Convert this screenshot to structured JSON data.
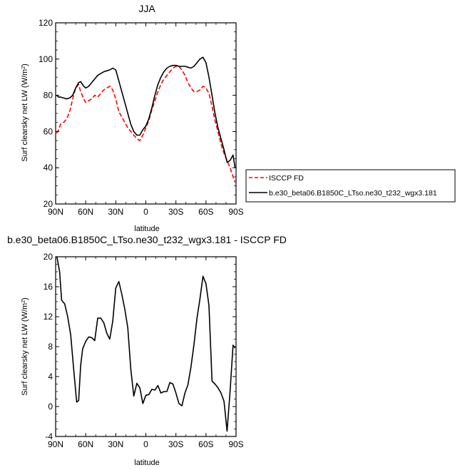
{
  "chart_data": [
    {
      "type": "line",
      "title": "JJA",
      "xlabel": "latitude",
      "ylabel": "Surf clearsky net LW (W/m²)",
      "xlim": [
        90,
        -90
      ],
      "ylim": [
        20,
        120
      ],
      "x_tick_values": [
        90,
        60,
        30,
        0,
        -30,
        -60,
        -90
      ],
      "x_tick_labels": [
        "90N",
        "60N",
        "30N",
        "0",
        "30S",
        "60S",
        "90S"
      ],
      "y_ticks": [
        20,
        40,
        60,
        80,
        100,
        120
      ],
      "legend_position": "outside-right",
      "series": [
        {
          "name": "ISCCP FD",
          "color": "#ff0000",
          "dash": "dashed",
          "x": [
            89,
            87,
            85,
            82,
            79,
            76,
            73,
            70,
            67,
            65,
            62,
            60,
            57,
            54,
            51,
            48,
            45,
            42,
            39,
            36,
            33,
            30,
            27,
            24,
            21,
            18,
            15,
            12,
            9,
            6,
            3,
            0,
            -3,
            -6,
            -9,
            -12,
            -15,
            -18,
            -21,
            -24,
            -27,
            -30,
            -33,
            -36,
            -39,
            -42,
            -45,
            -48,
            -51,
            -54,
            -57,
            -60,
            -63,
            -66,
            -69,
            -72,
            -75,
            -78,
            -81,
            -84,
            -87,
            -89
          ],
          "values": [
            59,
            61,
            64,
            65,
            67,
            71,
            78,
            84,
            86,
            82,
            78,
            76,
            77,
            78,
            80,
            79,
            81,
            83,
            84,
            85,
            83,
            78,
            71,
            68,
            65,
            62,
            60,
            58,
            56,
            55,
            58,
            62,
            66,
            72,
            77,
            82,
            86,
            89,
            91,
            93,
            95,
            96,
            96,
            94,
            91,
            87,
            84,
            82,
            82,
            83,
            85,
            84,
            81,
            74,
            66,
            60,
            53,
            48,
            44,
            40,
            35,
            32
          ]
        },
        {
          "name": "b.e30_beta06.B1850C_LTso.ne30_t232_wgx3.181",
          "color": "#000000",
          "dash": "solid",
          "x": [
            89,
            87,
            85,
            82,
            79,
            76,
            73,
            70,
            67,
            65,
            62,
            60,
            57,
            54,
            51,
            48,
            45,
            42,
            39,
            36,
            33,
            30,
            27,
            24,
            21,
            18,
            15,
            12,
            9,
            6,
            3,
            0,
            -3,
            -6,
            -9,
            -12,
            -15,
            -18,
            -21,
            -24,
            -27,
            -30,
            -33,
            -36,
            -39,
            -42,
            -45,
            -48,
            -51,
            -54,
            -57,
            -60,
            -63,
            -66,
            -69,
            -72,
            -75,
            -78,
            -81,
            -84,
            -87,
            -89
          ],
          "values": [
            80,
            79,
            79,
            78.5,
            78,
            78.5,
            80,
            84,
            87,
            87.5,
            85,
            84,
            85,
            87,
            89,
            91,
            92,
            93,
            93.5,
            94,
            95,
            94,
            88,
            82,
            76,
            70,
            64,
            60,
            58,
            58,
            61,
            63,
            67,
            73,
            80,
            86,
            90,
            93,
            95,
            96,
            96.5,
            96.5,
            96,
            96,
            96,
            95.5,
            95,
            96,
            98,
            100,
            101,
            98,
            90,
            80,
            70,
            62,
            56,
            50,
            43,
            44,
            47,
            40
          ]
        }
      ]
    },
    {
      "type": "line",
      "title": "b.e30_beta06.B1850C_LTso.ne30_t232_wgx3.181 - ISCCP FD",
      "xlabel": "latitude",
      "ylabel": "Surf clearsky net LW (W/m²)",
      "xlim": [
        90,
        -90
      ],
      "ylim": [
        -4,
        20
      ],
      "x_tick_values": [
        90,
        60,
        30,
        0,
        -30,
        -60,
        -90
      ],
      "x_tick_labels": [
        "90N",
        "60N",
        "30N",
        "0",
        "30S",
        "60S",
        "90S"
      ],
      "y_ticks": [
        -4,
        0,
        4,
        8,
        12,
        16,
        20
      ],
      "series": [
        {
          "color": "#000000",
          "dash": "solid",
          "x": [
            89,
            86,
            84,
            81,
            78,
            75,
            72,
            69,
            67,
            65,
            63,
            60,
            57,
            54,
            51,
            48,
            45,
            42,
            39,
            36,
            33,
            30,
            27,
            24,
            21,
            18,
            15,
            12,
            9,
            6,
            3,
            0,
            -3,
            -6,
            -9,
            -12,
            -15,
            -18,
            -21,
            -24,
            -27,
            -30,
            -33,
            -36,
            -39,
            -42,
            -45,
            -48,
            -51,
            -54,
            -57,
            -60,
            -63,
            -66,
            -69,
            -72,
            -75,
            -78,
            -81,
            -84,
            -87,
            -89
          ],
          "values": [
            20.2,
            18,
            14.2,
            13.7,
            12,
            9.6,
            5,
            0.6,
            0.8,
            5.5,
            7.7,
            8.7,
            9.3,
            9.2,
            8.8,
            11.8,
            11.8,
            11.2,
            9.8,
            9,
            11.4,
            15.8,
            16.7,
            15,
            13,
            10.5,
            5,
            1.4,
            3.1,
            2.5,
            0.4,
            1.5,
            1.6,
            2.3,
            2.2,
            2.8,
            1.8,
            2,
            2,
            3.2,
            3,
            1.8,
            0.4,
            0.1,
            1.8,
            2.9,
            5.3,
            8.3,
            11.8,
            14.4,
            17.4,
            16.4,
            13.5,
            3.4,
            3,
            2.5,
            1.8,
            0.7,
            -3.3,
            2,
            8.2,
            7.8
          ]
        }
      ]
    }
  ]
}
